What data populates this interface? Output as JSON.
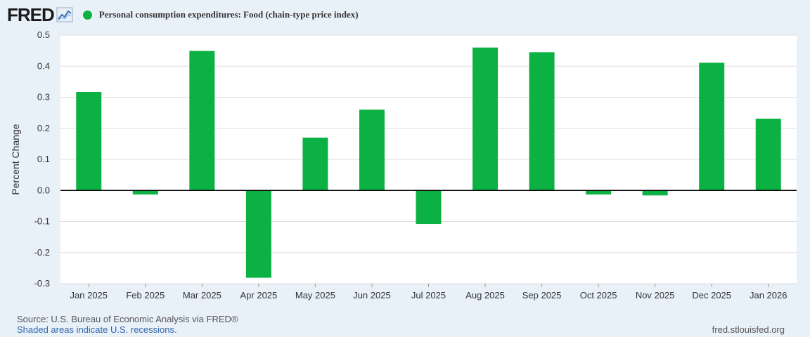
{
  "header": {
    "logo_text": "FRED",
    "legend_label": "Personal consumption expenditures: Food (chain-type price index)"
  },
  "colors": {
    "bar": "#0cb143",
    "background": "#e8f0f8",
    "plot_background": "#ffffff",
    "grid": "#dddddd",
    "zero_line": "#000000",
    "link": "#3366aa"
  },
  "chart_data": {
    "type": "bar",
    "title": "Personal consumption expenditures: Food (chain-type price index)",
    "xlabel": "",
    "ylabel": "Percent Change",
    "ylim": [
      -0.3,
      0.5
    ],
    "yticks": [
      0.5,
      0.4,
      0.3,
      0.2,
      0.1,
      0.0,
      -0.1,
      -0.2,
      -0.3
    ],
    "ytick_labels": [
      "0.5",
      "0.4",
      "0.3",
      "0.2",
      "0.1",
      "0.0",
      "-0.1",
      "-0.2",
      "-0.3"
    ],
    "grid": true,
    "categories": [
      "Jan 2025",
      "Feb 2025",
      "Mar 2025",
      "Apr 2025",
      "May 2025",
      "Jun 2025",
      "Jul 2025",
      "Aug 2025",
      "Sep 2025",
      "Oct 2025",
      "Nov 2025",
      "Dec 2025",
      "Jan 2026"
    ],
    "values": [
      0.317,
      -0.013,
      0.449,
      -0.281,
      0.17,
      0.26,
      -0.108,
      0.46,
      0.445,
      -0.013,
      -0.016,
      0.411,
      0.231
    ]
  },
  "footer": {
    "source": "Source: U.S. Bureau of Economic Analysis via FRED®",
    "shaded_note": "Shaded areas indicate U.S. recessions.",
    "site": "fred.stlouisfed.org"
  }
}
